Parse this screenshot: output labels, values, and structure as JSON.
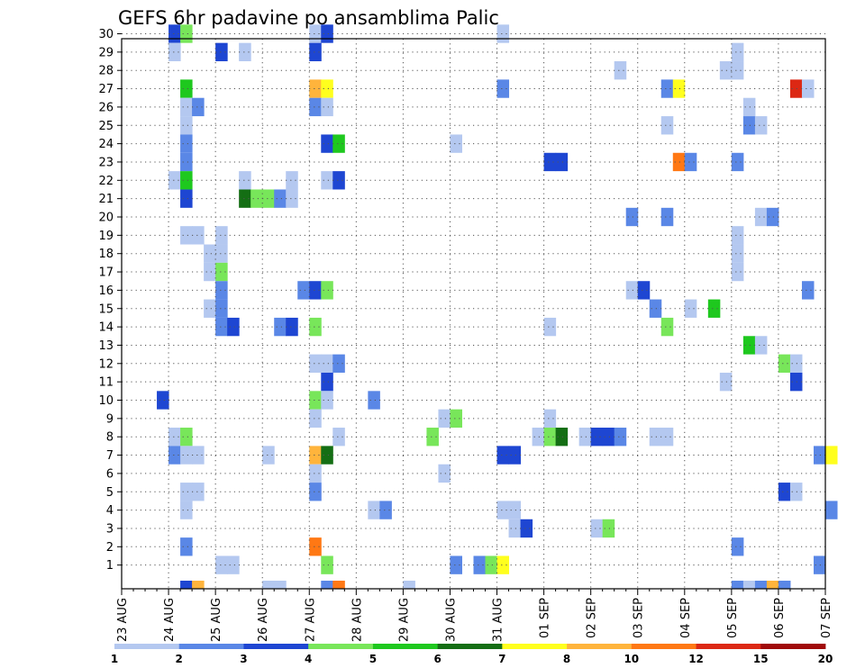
{
  "chart_data": {
    "type": "heatmap",
    "title": "GEFS 6hr padavine po ansamblima Palic",
    "x_ticks": [
      "23 AUG",
      "24 AUG",
      "25 AUG",
      "26 AUG",
      "27 AUG",
      "28 AUG",
      "29 AUG",
      "30 AUG",
      "31 AUG",
      "01 SEP",
      "02 SEP",
      "03 SEP",
      "04 SEP",
      "05 SEP",
      "06 SEP",
      "07 SEP"
    ],
    "y_ticks": [
      "1",
      "2",
      "3",
      "4",
      "5",
      "6",
      "7",
      "8",
      "9",
      "10",
      "11",
      "12",
      "13",
      "14",
      "15",
      "16",
      "17",
      "18",
      "19",
      "20",
      "21",
      "22",
      "23",
      "24",
      "25",
      "26",
      "27",
      "28",
      "29",
      "30"
    ],
    "x_range": [
      "23 AUG",
      "07 SEP"
    ],
    "y_range": [
      0,
      30
    ],
    "step_hours": 6,
    "grid": true,
    "colorbar": {
      "labels": [
        "1",
        "2",
        "3",
        "4",
        "5",
        "6",
        "7",
        "8",
        "10",
        "12",
        "15",
        "20"
      ],
      "colors": [
        "#b4c8f0",
        "#5a87e6",
        "#1e46d2",
        "#78e65a",
        "#1ec81e",
        "#146e14",
        "#ffff1e",
        "#ffb43c",
        "#ff7814",
        "#dc2814",
        "#a00a0a"
      ]
    },
    "cells": [
      {
        "m": 30,
        "t": "24 AUG 00",
        "c": 2
      },
      {
        "m": 30,
        "t": "24 AUG 06",
        "c": 3
      },
      {
        "m": 30,
        "t": "27 AUG 00",
        "c": 0
      },
      {
        "m": 30,
        "t": "27 AUG 06",
        "c": 2
      },
      {
        "m": 30,
        "t": "31 AUG 00",
        "c": 0
      },
      {
        "m": 29,
        "t": "24 AUG 00",
        "c": 0
      },
      {
        "m": 29,
        "t": "25 AUG 00",
        "c": 2
      },
      {
        "m": 29,
        "t": "25 AUG 12",
        "c": 0
      },
      {
        "m": 29,
        "t": "27 AUG 00",
        "c": 2
      },
      {
        "m": 29,
        "t": "05 SEP 00",
        "c": 0
      },
      {
        "m": 28,
        "t": "02 SEP 12",
        "c": 0
      },
      {
        "m": 28,
        "t": "04 SEP 18",
        "c": 0
      },
      {
        "m": 28,
        "t": "05 SEP 00",
        "c": 0
      },
      {
        "m": 27,
        "t": "24 AUG 06",
        "c": 4
      },
      {
        "m": 27,
        "t": "27 AUG 00",
        "c": 7
      },
      {
        "m": 27,
        "t": "27 AUG 06",
        "c": 6
      },
      {
        "m": 27,
        "t": "31 AUG 00",
        "c": 1
      },
      {
        "m": 27,
        "t": "03 SEP 12",
        "c": 1
      },
      {
        "m": 27,
        "t": "03 SEP 18",
        "c": 6
      },
      {
        "m": 27,
        "t": "06 SEP 06",
        "c": 9
      },
      {
        "m": 27,
        "t": "06 SEP 12",
        "c": 0
      },
      {
        "m": 26,
        "t": "24 AUG 06",
        "c": 0
      },
      {
        "m": 26,
        "t": "24 AUG 12",
        "c": 1
      },
      {
        "m": 26,
        "t": "27 AUG 00",
        "c": 1
      },
      {
        "m": 26,
        "t": "27 AUG 06",
        "c": 0
      },
      {
        "m": 26,
        "t": "05 SEP 06",
        "c": 0
      },
      {
        "m": 25,
        "t": "24 AUG 06",
        "c": 0
      },
      {
        "m": 25,
        "t": "03 SEP 12",
        "c": 0
      },
      {
        "m": 25,
        "t": "05 SEP 06",
        "c": 1
      },
      {
        "m": 25,
        "t": "05 SEP 12",
        "c": 0
      },
      {
        "m": 24,
        "t": "24 AUG 06",
        "c": 1
      },
      {
        "m": 24,
        "t": "27 AUG 06",
        "c": 2
      },
      {
        "m": 24,
        "t": "27 AUG 12",
        "c": 4
      },
      {
        "m": 24,
        "t": "30 AUG 00",
        "c": 0
      },
      {
        "m": 23,
        "t": "24 AUG 06",
        "c": 1
      },
      {
        "m": 23,
        "t": "01 SEP 00",
        "c": 2
      },
      {
        "m": 23,
        "t": "01 SEP 06",
        "c": 2
      },
      {
        "m": 23,
        "t": "03 SEP 18",
        "c": 8
      },
      {
        "m": 23,
        "t": "04 SEP 00",
        "c": 1
      },
      {
        "m": 23,
        "t": "05 SEP 00",
        "c": 1
      },
      {
        "m": 22,
        "t": "24 AUG 00",
        "c": 0
      },
      {
        "m": 22,
        "t": "24 AUG 06",
        "c": 4
      },
      {
        "m": 22,
        "t": "25 AUG 12",
        "c": 0
      },
      {
        "m": 22,
        "t": "26 AUG 12",
        "c": 0
      },
      {
        "m": 22,
        "t": "27 AUG 06",
        "c": 0
      },
      {
        "m": 22,
        "t": "27 AUG 12",
        "c": 2
      },
      {
        "m": 21,
        "t": "24 AUG 06",
        "c": 2
      },
      {
        "m": 21,
        "t": "25 AUG 12",
        "c": 5
      },
      {
        "m": 21,
        "t": "25 AUG 18",
        "c": 3
      },
      {
        "m": 21,
        "t": "26 AUG 00",
        "c": 3
      },
      {
        "m": 21,
        "t": "26 AUG 06",
        "c": 1
      },
      {
        "m": 21,
        "t": "26 AUG 12",
        "c": 0
      },
      {
        "m": 20,
        "t": "02 SEP 18",
        "c": 1
      },
      {
        "m": 20,
        "t": "03 SEP 12",
        "c": 1
      },
      {
        "m": 20,
        "t": "05 SEP 12",
        "c": 0
      },
      {
        "m": 20,
        "t": "05 SEP 18",
        "c": 1
      },
      {
        "m": 19,
        "t": "24 AUG 06",
        "c": 0
      },
      {
        "m": 19,
        "t": "24 AUG 12",
        "c": 0
      },
      {
        "m": 19,
        "t": "25 AUG 00",
        "c": 0
      },
      {
        "m": 19,
        "t": "05 SEP 00",
        "c": 0
      },
      {
        "m": 18,
        "t": "24 AUG 18",
        "c": 0
      },
      {
        "m": 18,
        "t": "25 AUG 00",
        "c": 0
      },
      {
        "m": 18,
        "t": "05 SEP 00",
        "c": 0
      },
      {
        "m": 17,
        "t": "24 AUG 18",
        "c": 0
      },
      {
        "m": 17,
        "t": "25 AUG 00",
        "c": 3
      },
      {
        "m": 17,
        "t": "05 SEP 00",
        "c": 0
      },
      {
        "m": 16,
        "t": "25 AUG 00",
        "c": 1
      },
      {
        "m": 16,
        "t": "26 AUG 18",
        "c": 1
      },
      {
        "m": 16,
        "t": "27 AUG 00",
        "c": 2
      },
      {
        "m": 16,
        "t": "27 AUG 06",
        "c": 3
      },
      {
        "m": 16,
        "t": "02 SEP 18",
        "c": 0
      },
      {
        "m": 16,
        "t": "03 SEP 00",
        "c": 2
      },
      {
        "m": 16,
        "t": "06 SEP 12",
        "c": 1
      },
      {
        "m": 15,
        "t": "24 AUG 18",
        "c": 0
      },
      {
        "m": 15,
        "t": "25 AUG 00",
        "c": 1
      },
      {
        "m": 15,
        "t": "03 SEP 06",
        "c": 1
      },
      {
        "m": 15,
        "t": "04 SEP 00",
        "c": 0
      },
      {
        "m": 15,
        "t": "04 SEP 12",
        "c": 4
      },
      {
        "m": 14,
        "t": "25 AUG 00",
        "c": 1
      },
      {
        "m": 14,
        "t": "25 AUG 06",
        "c": 2
      },
      {
        "m": 14,
        "t": "26 AUG 06",
        "c": 1
      },
      {
        "m": 14,
        "t": "26 AUG 12",
        "c": 2
      },
      {
        "m": 14,
        "t": "27 AUG 00",
        "c": 3
      },
      {
        "m": 14,
        "t": "01 SEP 00",
        "c": 0
      },
      {
        "m": 14,
        "t": "03 SEP 12",
        "c": 3
      },
      {
        "m": 13,
        "t": "05 SEP 06",
        "c": 4
      },
      {
        "m": 13,
        "t": "05 SEP 12",
        "c": 0
      },
      {
        "m": 12,
        "t": "27 AUG 00",
        "c": 0
      },
      {
        "m": 12,
        "t": "27 AUG 06",
        "c": 0
      },
      {
        "m": 12,
        "t": "27 AUG 12",
        "c": 1
      },
      {
        "m": 12,
        "t": "06 SEP 00",
        "c": 3
      },
      {
        "m": 12,
        "t": "06 SEP 06",
        "c": 0
      },
      {
        "m": 11,
        "t": "27 AUG 06",
        "c": 2
      },
      {
        "m": 11,
        "t": "04 SEP 18",
        "c": 0
      },
      {
        "m": 11,
        "t": "06 SEP 06",
        "c": 2
      },
      {
        "m": 10,
        "t": "23 AUG 18",
        "c": 2
      },
      {
        "m": 10,
        "t": "27 AUG 00",
        "c": 3
      },
      {
        "m": 10,
        "t": "27 AUG 06",
        "c": 0
      },
      {
        "m": 10,
        "t": "28 AUG 06",
        "c": 1
      },
      {
        "m": 9,
        "t": "27 AUG 00",
        "c": 0
      },
      {
        "m": 9,
        "t": "29 AUG 18",
        "c": 0
      },
      {
        "m": 9,
        "t": "30 AUG 00",
        "c": 3
      },
      {
        "m": 9,
        "t": "01 SEP 00",
        "c": 0
      },
      {
        "m": 8,
        "t": "24 AUG 00",
        "c": 0
      },
      {
        "m": 8,
        "t": "24 AUG 06",
        "c": 3
      },
      {
        "m": 8,
        "t": "27 AUG 12",
        "c": 0
      },
      {
        "m": 8,
        "t": "29 AUG 12",
        "c": 3
      },
      {
        "m": 8,
        "t": "31 AUG 18",
        "c": 0
      },
      {
        "m": 8,
        "t": "01 SEP 00",
        "c": 3
      },
      {
        "m": 8,
        "t": "01 SEP 06",
        "c": 5
      },
      {
        "m": 8,
        "t": "01 SEP 18",
        "c": 0
      },
      {
        "m": 8,
        "t": "02 SEP 00",
        "c": 2
      },
      {
        "m": 8,
        "t": "02 SEP 06",
        "c": 2
      },
      {
        "m": 8,
        "t": "02 SEP 12",
        "c": 1
      },
      {
        "m": 8,
        "t": "03 SEP 06",
        "c": 0
      },
      {
        "m": 8,
        "t": "03 SEP 12",
        "c": 0
      },
      {
        "m": 7,
        "t": "24 AUG 00",
        "c": 1
      },
      {
        "m": 7,
        "t": "24 AUG 06",
        "c": 0
      },
      {
        "m": 7,
        "t": "24 AUG 12",
        "c": 0
      },
      {
        "m": 7,
        "t": "26 AUG 00",
        "c": 0
      },
      {
        "m": 7,
        "t": "27 AUG 00",
        "c": 7
      },
      {
        "m": 7,
        "t": "27 AUG 06",
        "c": 5
      },
      {
        "m": 7,
        "t": "31 AUG 00",
        "c": 2
      },
      {
        "m": 7,
        "t": "31 AUG 06",
        "c": 2
      },
      {
        "m": 7,
        "t": "06 SEP 18",
        "c": 1
      },
      {
        "m": 7,
        "t": "07 SEP 00",
        "c": 6
      },
      {
        "m": 6,
        "t": "27 AUG 00",
        "c": 0
      },
      {
        "m": 6,
        "t": "29 AUG 18",
        "c": 0
      },
      {
        "m": 5,
        "t": "24 AUG 06",
        "c": 0
      },
      {
        "m": 5,
        "t": "24 AUG 12",
        "c": 0
      },
      {
        "m": 5,
        "t": "27 AUG 00",
        "c": 1
      },
      {
        "m": 5,
        "t": "06 SEP 00",
        "c": 2
      },
      {
        "m": 5,
        "t": "06 SEP 06",
        "c": 0
      },
      {
        "m": 4,
        "t": "24 AUG 06",
        "c": 0
      },
      {
        "m": 4,
        "t": "28 AUG 06",
        "c": 0
      },
      {
        "m": 4,
        "t": "28 AUG 12",
        "c": 1
      },
      {
        "m": 4,
        "t": "31 AUG 00",
        "c": 0
      },
      {
        "m": 4,
        "t": "31 AUG 06",
        "c": 0
      },
      {
        "m": 4,
        "t": "07 SEP 00",
        "c": 1
      },
      {
        "m": 3,
        "t": "31 AUG 06",
        "c": 0
      },
      {
        "m": 3,
        "t": "31 AUG 12",
        "c": 2
      },
      {
        "m": 3,
        "t": "02 SEP 00",
        "c": 0
      },
      {
        "m": 3,
        "t": "02 SEP 06",
        "c": 3
      },
      {
        "m": 2,
        "t": "24 AUG 06",
        "c": 1
      },
      {
        "m": 2,
        "t": "27 AUG 00",
        "c": 8
      },
      {
        "m": 2,
        "t": "05 SEP 00",
        "c": 1
      },
      {
        "m": 1,
        "t": "25 AUG 00",
        "c": 0
      },
      {
        "m": 1,
        "t": "25 AUG 06",
        "c": 0
      },
      {
        "m": 1,
        "t": "27 AUG 06",
        "c": 3
      },
      {
        "m": 1,
        "t": "30 AUG 00",
        "c": 1
      },
      {
        "m": 1,
        "t": "30 AUG 12",
        "c": 1
      },
      {
        "m": 1,
        "t": "30 AUG 18",
        "c": 3
      },
      {
        "m": 1,
        "t": "31 AUG 00",
        "c": 6
      },
      {
        "m": 1,
        "t": "06 SEP 18",
        "c": 1
      },
      {
        "m": 0,
        "t": "24 AUG 06",
        "c": 2
      },
      {
        "m": 0,
        "t": "24 AUG 12",
        "c": 7
      },
      {
        "m": 0,
        "t": "26 AUG 00",
        "c": 0
      },
      {
        "m": 0,
        "t": "26 AUG 06",
        "c": 0
      },
      {
        "m": 0,
        "t": "27 AUG 06",
        "c": 1
      },
      {
        "m": 0,
        "t": "27 AUG 12",
        "c": 8
      },
      {
        "m": 0,
        "t": "29 AUG 00",
        "c": 0
      },
      {
        "m": 0,
        "t": "05 SEP 00",
        "c": 1
      },
      {
        "m": 0,
        "t": "05 SEP 06",
        "c": 0
      },
      {
        "m": 0,
        "t": "05 SEP 12",
        "c": 1
      },
      {
        "m": 0,
        "t": "05 SEP 18",
        "c": 7
      },
      {
        "m": 0,
        "t": "06 SEP 00",
        "c": 1
      }
    ]
  }
}
